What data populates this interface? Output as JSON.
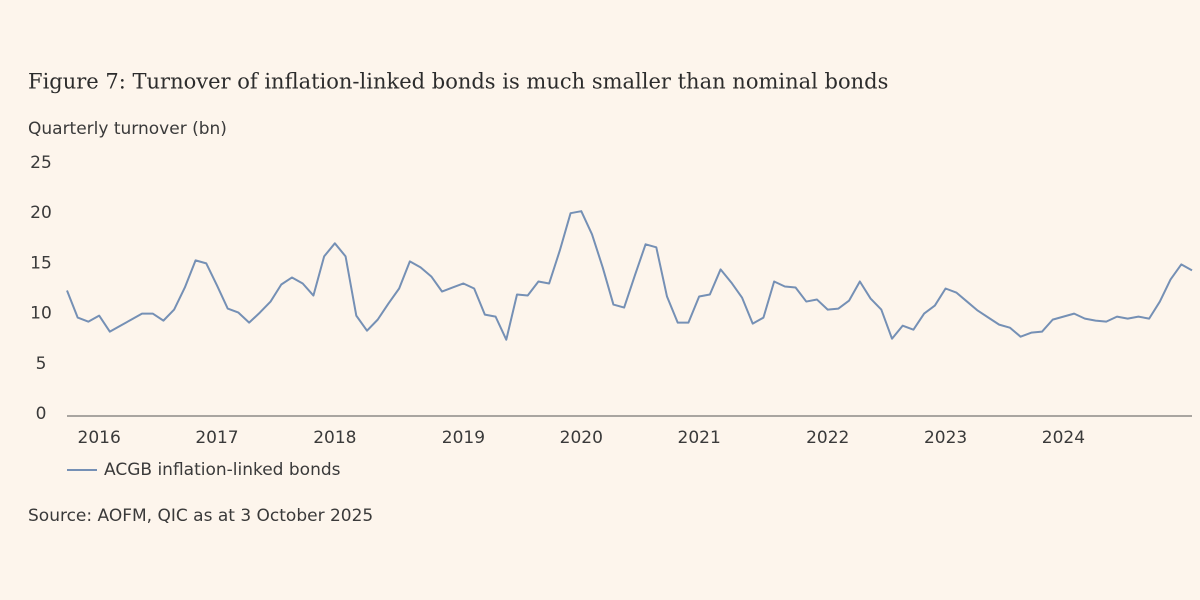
{
  "chart_data": {
    "type": "line",
    "title": "Figure 7: Turnover of inflation-linked bonds is much smaller than nominal bonds",
    "y_label": "Quarterly turnover (bn)",
    "source": "Source: AOFM, QIC as at 3 October 2025",
    "categories": [
      null,
      null,
      null,
      "2016",
      null,
      null,
      null,
      null,
      null,
      null,
      null,
      null,
      null,
      null,
      "2017",
      null,
      null,
      null,
      null,
      null,
      null,
      null,
      null,
      null,
      null,
      "2018",
      null,
      null,
      null,
      null,
      null,
      null,
      null,
      null,
      null,
      null,
      null,
      "2019",
      null,
      null,
      null,
      null,
      null,
      null,
      null,
      null,
      null,
      null,
      "2020",
      null,
      null,
      null,
      null,
      null,
      null,
      null,
      null,
      null,
      null,
      "2021",
      null,
      null,
      null,
      null,
      null,
      null,
      null,
      null,
      null,
      null,
      null,
      "2022",
      null,
      null,
      null,
      null,
      null,
      null,
      null,
      null,
      null,
      null,
      "2023",
      null,
      null,
      null,
      null,
      null,
      null,
      null,
      null,
      null,
      null,
      "2024",
      null,
      null,
      null,
      null,
      null,
      null,
      null,
      null,
      null,
      null,
      null,
      null
    ],
    "series": [
      {
        "name": "ACGB inflation-linked bonds",
        "color": "#7590b5",
        "values": [
          12.3,
          9.6,
          9.2,
          9.8,
          8.2,
          8.8,
          9.4,
          10.0,
          10.0,
          9.3,
          10.4,
          12.6,
          15.3,
          15.0,
          12.8,
          10.5,
          10.1,
          9.1,
          10.1,
          11.2,
          12.9,
          13.6,
          13.0,
          11.8,
          15.7,
          17.0,
          15.7,
          9.8,
          8.3,
          9.4,
          11.0,
          12.5,
          15.2,
          14.6,
          13.7,
          12.2,
          12.6,
          13.0,
          12.5,
          9.9,
          9.7,
          7.4,
          11.9,
          11.8,
          13.2,
          13.0,
          16.3,
          20.0,
          20.2,
          17.9,
          14.6,
          10.9,
          10.6,
          13.8,
          16.9,
          16.6,
          11.7,
          9.1,
          9.1,
          11.7,
          11.9,
          14.4,
          13.1,
          11.6,
          9.0,
          9.6,
          13.2,
          12.7,
          12.6,
          11.2,
          11.4,
          10.4,
          10.5,
          11.3,
          13.2,
          11.5,
          10.4,
          7.5,
          8.8,
          8.4,
          10.0,
          10.8,
          12.5,
          12.1,
          11.2,
          10.3,
          9.6,
          8.9,
          8.6,
          7.7,
          8.1,
          8.2,
          9.4,
          9.7,
          10.0,
          9.5,
          9.3,
          9.2,
          9.7,
          9.5,
          9.7,
          9.5,
          11.2,
          13.4,
          14.9,
          14.3
        ]
      }
    ],
    "ylim": [
      0,
      25
    ],
    "yticks": [
      0,
      5,
      10,
      15,
      20,
      25
    ],
    "grid": false,
    "legend": "bottom-left"
  }
}
